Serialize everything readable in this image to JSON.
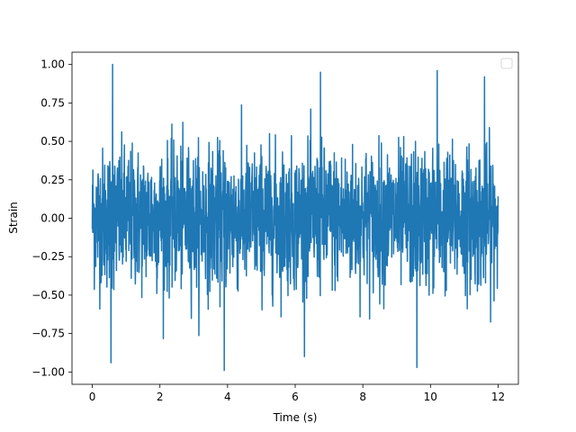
{
  "chart_data": {
    "type": "line",
    "title": "",
    "xlabel": "Time (s)",
    "ylabel": "Strain",
    "xlim": [
      -0.6,
      12.6
    ],
    "ylim": [
      -1.08,
      1.08
    ],
    "x_ticks": [
      0,
      2,
      4,
      6,
      8,
      10,
      12
    ],
    "x_tick_labels": [
      "0",
      "2",
      "4",
      "6",
      "8",
      "10",
      "12"
    ],
    "y_ticks": [
      -1.0,
      -0.75,
      -0.5,
      -0.25,
      0.0,
      0.25,
      0.5,
      0.75,
      1.0
    ],
    "y_tick_labels": [
      "−1.00",
      "−0.75",
      "−0.50",
      "−0.25",
      "0.00",
      "0.25",
      "0.50",
      "0.75",
      "1.00"
    ],
    "grid": false,
    "legend": {
      "placement": "top-right",
      "entries": []
    },
    "series": [
      {
        "color": "#1f77b4",
        "x_range": [
          0,
          12
        ],
        "sample_count": 2000,
        "typical_envelope": [
          -0.5,
          0.5
        ],
        "extremes": [
          {
            "x": 0.6,
            "y": 1.0
          },
          {
            "x": 3.9,
            "y": -0.99
          },
          {
            "x": 10.2,
            "y": 0.96
          },
          {
            "x": 9.6,
            "y": -0.97
          },
          {
            "x": 6.75,
            "y": 0.95
          },
          {
            "x": 0.55,
            "y": -0.94
          },
          {
            "x": 11.6,
            "y": 0.92
          }
        ]
      }
    ]
  }
}
